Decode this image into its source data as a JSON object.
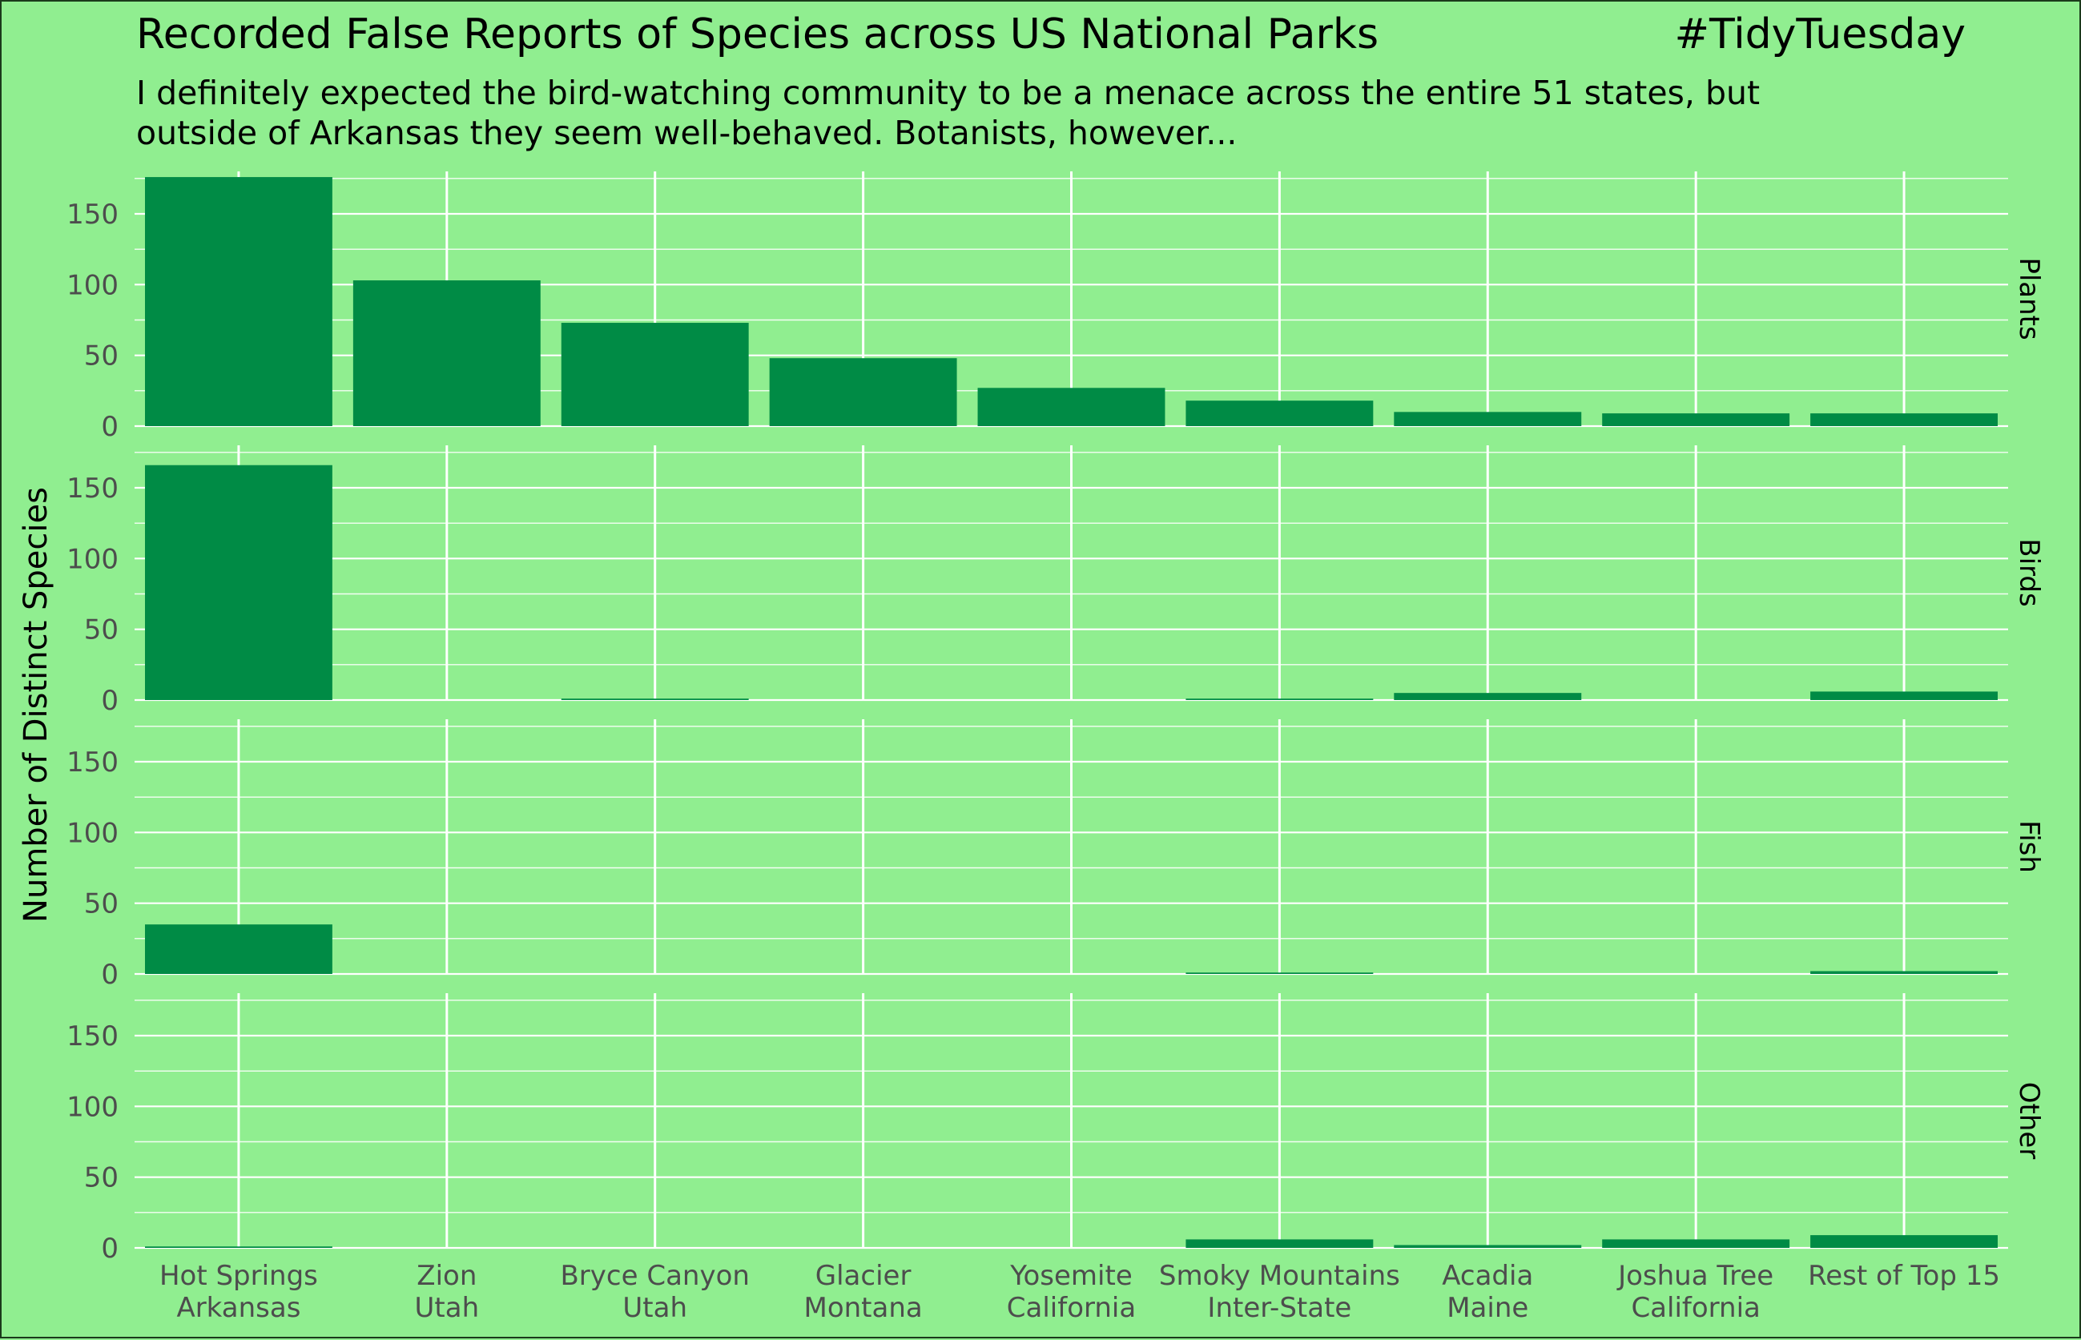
{
  "chart_data": {
    "type": "bar",
    "title": "Recorded False Reports of Species across US National Parks",
    "tag": "#TidyTuesday",
    "subtitle_lines": [
      "I definitely expected the bird-watching community to be a menace across the entire 51 states, but",
      "outside of Arkansas they seem well-behaved. Botanists, however..."
    ],
    "ylabel": "Number of Distinct Species",
    "xlabel": "",
    "ylim": [
      0,
      180
    ],
    "y_ticks": [
      0,
      50,
      100,
      150
    ],
    "grid": true,
    "categories": [
      [
        "Hot Springs",
        "Arkansas"
      ],
      [
        "Zion",
        "Utah"
      ],
      [
        "Bryce Canyon",
        "Utah"
      ],
      [
        "Glacier",
        "Montana"
      ],
      [
        "Yosemite",
        "California"
      ],
      [
        "Smoky Mountains",
        "Inter-State"
      ],
      [
        "Acadia",
        "Maine"
      ],
      [
        "Joshua Tree",
        "California"
      ],
      [
        "Rest of Top 15",
        ""
      ]
    ],
    "facets": [
      {
        "name": "Plants",
        "values": [
          176,
          103,
          73,
          48,
          27,
          18,
          10,
          9,
          9
        ]
      },
      {
        "name": "Birds",
        "values": [
          166,
          0,
          1,
          0,
          0,
          1,
          5,
          0,
          6
        ]
      },
      {
        "name": "Fish",
        "values": [
          35,
          0,
          0,
          0,
          0,
          1,
          0,
          0,
          2
        ]
      },
      {
        "name": "Other",
        "values": [
          1,
          0,
          0,
          0,
          0,
          6,
          2,
          6,
          9
        ]
      }
    ]
  },
  "colors": {
    "background": "#90ee90",
    "bar": "#008b45",
    "grid": "#ffffff",
    "text": "#000000",
    "tick_text": "#4d4d4d"
  }
}
